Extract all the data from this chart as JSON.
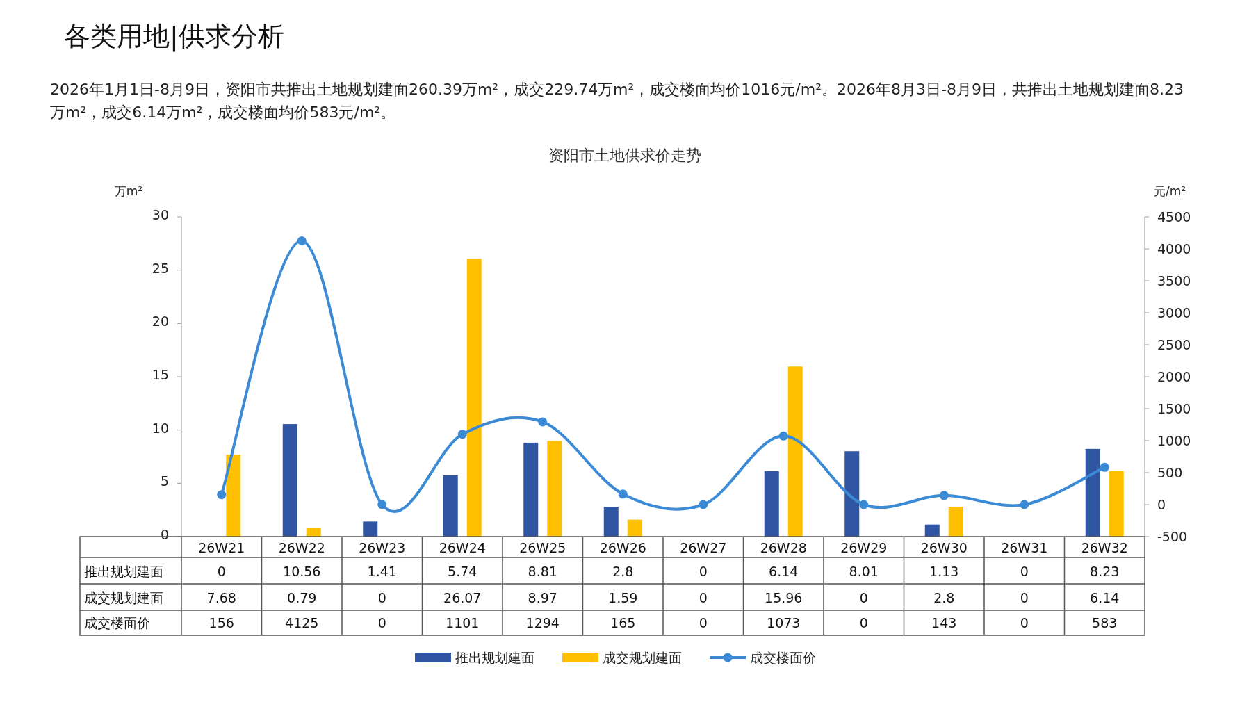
{
  "chart_data": {
    "type": "bar",
    "title": "资阳市土地供求价走势",
    "subtitle": "2026年1月1日-8月9日，资阳市共推出土地规划建面260.39万m²，成交229.74万m²，成交楼面均价1016元/m²。2026年8月3日-8月9日，共推出土地规划建面8.23万m²，成交6.14万m²，成交楼面均价583元/m²。",
    "annotations": [
      "各类用地|供求分析"
    ],
    "ylabel": "万m²",
    "y2label": "元/m²",
    "categories": [
      "26W21",
      "26W22",
      "26W23",
      "26W24",
      "26W25",
      "26W26",
      "26W27",
      "26W28",
      "26W29",
      "26W30",
      "26W31",
      "26W32"
    ],
    "series": [
      {
        "name": "推出规划建面",
        "color": "#2f55a3",
        "values": [
          0,
          10.56,
          1.41,
          5.74,
          8.81,
          2.8,
          0,
          6.14,
          8.01,
          1.13,
          0,
          8.23
        ],
        "value_labels": [
          "0",
          "10.56",
          "1.41",
          "5.74",
          "8.81",
          "2.8",
          "0",
          "6.14",
          "8.01",
          "1.13",
          "0",
          "8.23"
        ]
      },
      {
        "name": "成交规划建面",
        "color": "#ffc000",
        "values": [
          7.68,
          0.79,
          0,
          26.07,
          8.97,
          1.59,
          0,
          15.96,
          0,
          2.8,
          0,
          6.14
        ],
        "value_labels": [
          "7.68",
          "0.79",
          "0",
          "26.07",
          "8.97",
          "1.59",
          "0",
          "15.96",
          "0",
          "2.8",
          "0",
          "6.14"
        ]
      },
      {
        "name": "成交楼面价",
        "type": "line",
        "axis": "y2",
        "color": "#3a8ad6",
        "values": [
          156,
          4125,
          0,
          1101,
          1294,
          165,
          0,
          1073,
          0,
          143,
          0,
          583
        ],
        "value_labels": [
          "156",
          "4125",
          "0",
          "1101",
          "1294",
          "165",
          "0",
          "1073",
          "0",
          "143",
          "0",
          "583"
        ]
      }
    ],
    "ylim": [
      0,
      30
    ],
    "yticks": [
      0,
      5,
      10,
      15,
      20,
      25,
      30
    ],
    "y2lim": [
      -500,
      4500
    ],
    "y2ticks": [
      -500,
      0,
      500,
      1000,
      1500,
      2000,
      2500,
      3000,
      3500,
      4000,
      4500
    ],
    "marker": "circle",
    "legend": "bottom",
    "grid": false
  }
}
